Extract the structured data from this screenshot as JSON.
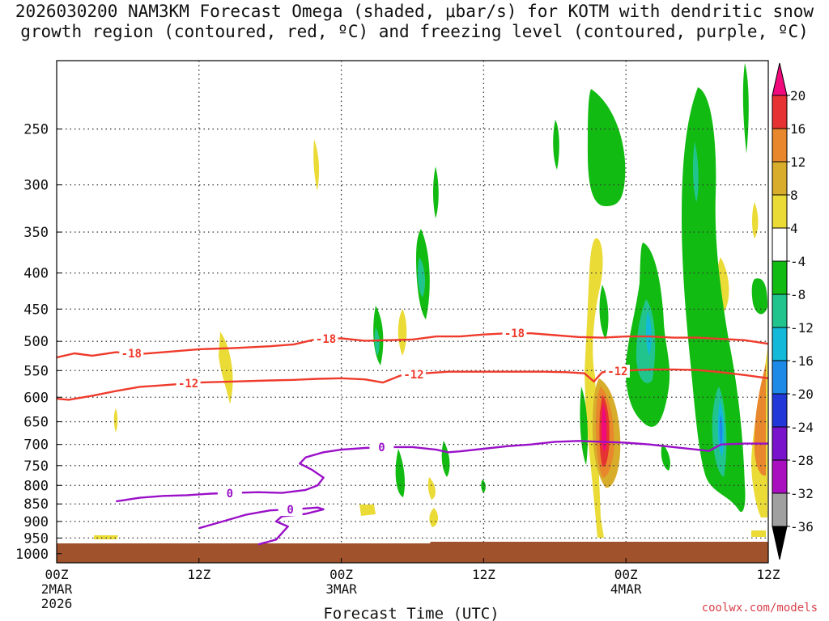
{
  "title": {
    "line1": "2026030200 NAM3KM Forecast Omega (shaded, μbar/s) for KOTM with dendritic snow",
    "line2": "growth region (contoured, red, ºC) and freezing level (contoured, purple, ºC)"
  },
  "credit": "coolwx.com/models",
  "colors": {
    "ground": "#a0522d",
    "dgz_contour": "#ef3b2c",
    "freezing_contour": "#9a10c8",
    "grid": "#333333"
  },
  "chart_data": {
    "type": "heatmap",
    "title": "2026030200 NAM3KM Forecast Omega (shaded, μbar/s) for KOTM with dendritic snow growth region (contoured, red, ºC) and freezing level (contoured, purple, ºC)",
    "xlabel": "Forecast Time (UTC)",
    "ylabel": "",
    "y_scale": "log-pressure",
    "y_inverted": true,
    "xlim_hours": [
      0,
      60
    ],
    "ylim_hPa": [
      1030,
      200
    ],
    "x_ticks": [
      {
        "hour": 0,
        "label": "00Z",
        "sublabel": "2MAR",
        "year": "2026"
      },
      {
        "hour": 12,
        "label": "12Z",
        "sublabel": "",
        "year": ""
      },
      {
        "hour": 24,
        "label": "00Z",
        "sublabel": "3MAR",
        "year": ""
      },
      {
        "hour": 36,
        "label": "12Z",
        "sublabel": "",
        "year": ""
      },
      {
        "hour": 48,
        "label": "00Z",
        "sublabel": "4MAR",
        "year": ""
      },
      {
        "hour": 60,
        "label": "12Z",
        "sublabel": "",
        "year": ""
      }
    ],
    "y_ticks": [
      250,
      300,
      350,
      400,
      450,
      500,
      550,
      600,
      650,
      700,
      750,
      800,
      850,
      900,
      950,
      1000
    ],
    "grid": true,
    "colorbar": {
      "placement": "right",
      "labels": [
        "20",
        "16",
        "12",
        "8",
        "4",
        "-4",
        "-8",
        "-12",
        "-16",
        "-20",
        "-24",
        "-28",
        "-32",
        "-36"
      ],
      "colors": [
        "#f00a7c",
        "#e63232",
        "#e8872b",
        "#d8ad2c",
        "#eadb37",
        "#ffffff",
        "#11bb11",
        "#21c48d",
        "#12b9d8",
        "#1e8ae8",
        "#2237d7",
        "#7a13cc",
        "#a90fbf",
        "#a0a0a0",
        "#000000"
      ]
    },
    "contours": [
      {
        "name": "-18",
        "color": "#ef3b2c",
        "label_hour": 6.3,
        "points": [
          [
            0,
            527
          ],
          [
            1.5,
            520
          ],
          [
            3,
            524
          ],
          [
            5,
            518
          ],
          [
            7,
            521
          ],
          [
            9,
            518
          ],
          [
            12,
            513
          ],
          [
            15,
            511
          ],
          [
            18,
            508
          ],
          [
            20,
            505
          ],
          [
            22,
            496
          ],
          [
            24,
            495
          ],
          [
            26,
            499
          ],
          [
            28,
            498
          ],
          [
            30,
            497
          ],
          [
            32,
            492
          ],
          [
            34,
            492
          ],
          [
            36,
            489
          ],
          [
            38,
            487
          ],
          [
            40,
            487
          ],
          [
            42,
            490
          ],
          [
            44,
            493
          ],
          [
            46,
            494
          ],
          [
            48,
            492
          ],
          [
            50,
            492
          ],
          [
            52,
            494
          ],
          [
            54,
            494
          ],
          [
            56,
            496
          ],
          [
            58,
            498
          ],
          [
            60,
            504
          ]
        ],
        "label_positions": [
          6.3,
          22.7,
          38.6
        ]
      },
      {
        "name": "-12",
        "color": "#ef3b2c",
        "label_hour": 11.1,
        "points": [
          [
            0,
            603
          ],
          [
            1,
            605
          ],
          [
            3,
            597
          ],
          [
            5,
            588
          ],
          [
            7,
            580
          ],
          [
            9,
            577
          ],
          [
            12,
            572
          ],
          [
            15,
            570
          ],
          [
            18,
            568
          ],
          [
            20,
            567
          ],
          [
            22,
            565
          ],
          [
            24,
            564
          ],
          [
            26,
            566
          ],
          [
            27.5,
            572
          ],
          [
            29,
            559
          ],
          [
            31,
            555
          ],
          [
            33,
            552
          ],
          [
            35,
            552
          ],
          [
            37,
            552
          ],
          [
            39,
            552
          ],
          [
            41,
            552
          ],
          [
            43,
            553
          ],
          [
            44.5,
            555
          ],
          [
            45.3,
            570
          ],
          [
            46,
            553
          ],
          [
            48,
            550
          ],
          [
            50,
            548
          ],
          [
            52,
            548
          ],
          [
            54,
            549
          ],
          [
            56,
            553
          ],
          [
            58,
            558
          ],
          [
            60,
            564
          ]
        ],
        "label_positions": [
          11.1,
          30.1,
          47.3
        ]
      },
      {
        "name": "0",
        "color": "#9a10c8",
        "label_hour": 14.6,
        "points": [
          [
            5,
            843
          ],
          [
            7,
            833
          ],
          [
            9,
            828
          ],
          [
            11,
            826
          ],
          [
            13,
            822
          ],
          [
            15,
            820
          ],
          [
            17,
            818
          ],
          [
            19,
            820
          ],
          [
            21,
            812
          ],
          [
            22,
            800
          ],
          [
            22.5,
            780
          ],
          [
            21.5,
            760
          ],
          [
            20.5,
            745
          ],
          [
            21,
            730
          ],
          [
            22.5,
            718
          ],
          [
            24,
            712
          ],
          [
            26,
            708
          ],
          [
            28,
            706
          ],
          [
            30,
            706
          ],
          [
            32,
            712
          ],
          [
            33,
            718
          ],
          [
            34,
            716
          ],
          [
            36,
            710
          ],
          [
            38,
            704
          ],
          [
            40,
            700
          ],
          [
            42,
            694
          ],
          [
            44,
            692
          ],
          [
            46,
            694
          ],
          [
            48,
            696
          ],
          [
            50,
            700
          ],
          [
            52,
            706
          ],
          [
            54,
            712
          ],
          [
            55,
            715
          ],
          [
            56,
            700
          ],
          [
            58,
            698
          ],
          [
            60,
            698
          ]
        ],
        "label_positions": [
          14.6,
          27.4
        ]
      },
      {
        "name": "0",
        "color": "#9a10c8",
        "label_hour": 19.7,
        "points": [
          [
            12,
            920
          ],
          [
            14,
            900
          ],
          [
            16,
            880
          ],
          [
            18,
            868
          ],
          [
            20,
            865
          ],
          [
            22,
            860
          ],
          [
            22.5,
            865
          ],
          [
            21,
            878
          ],
          [
            19,
            885
          ],
          [
            18.5,
            900
          ],
          [
            19.5,
            915
          ],
          [
            19,
            935
          ],
          [
            18.5,
            955
          ],
          [
            17,
            970
          ]
        ],
        "label_positions": [
          19.7
        ]
      }
    ],
    "contour_levels": [
      "-18",
      "-12",
      "0"
    ],
    "ground_level_hPa": 1000
  }
}
